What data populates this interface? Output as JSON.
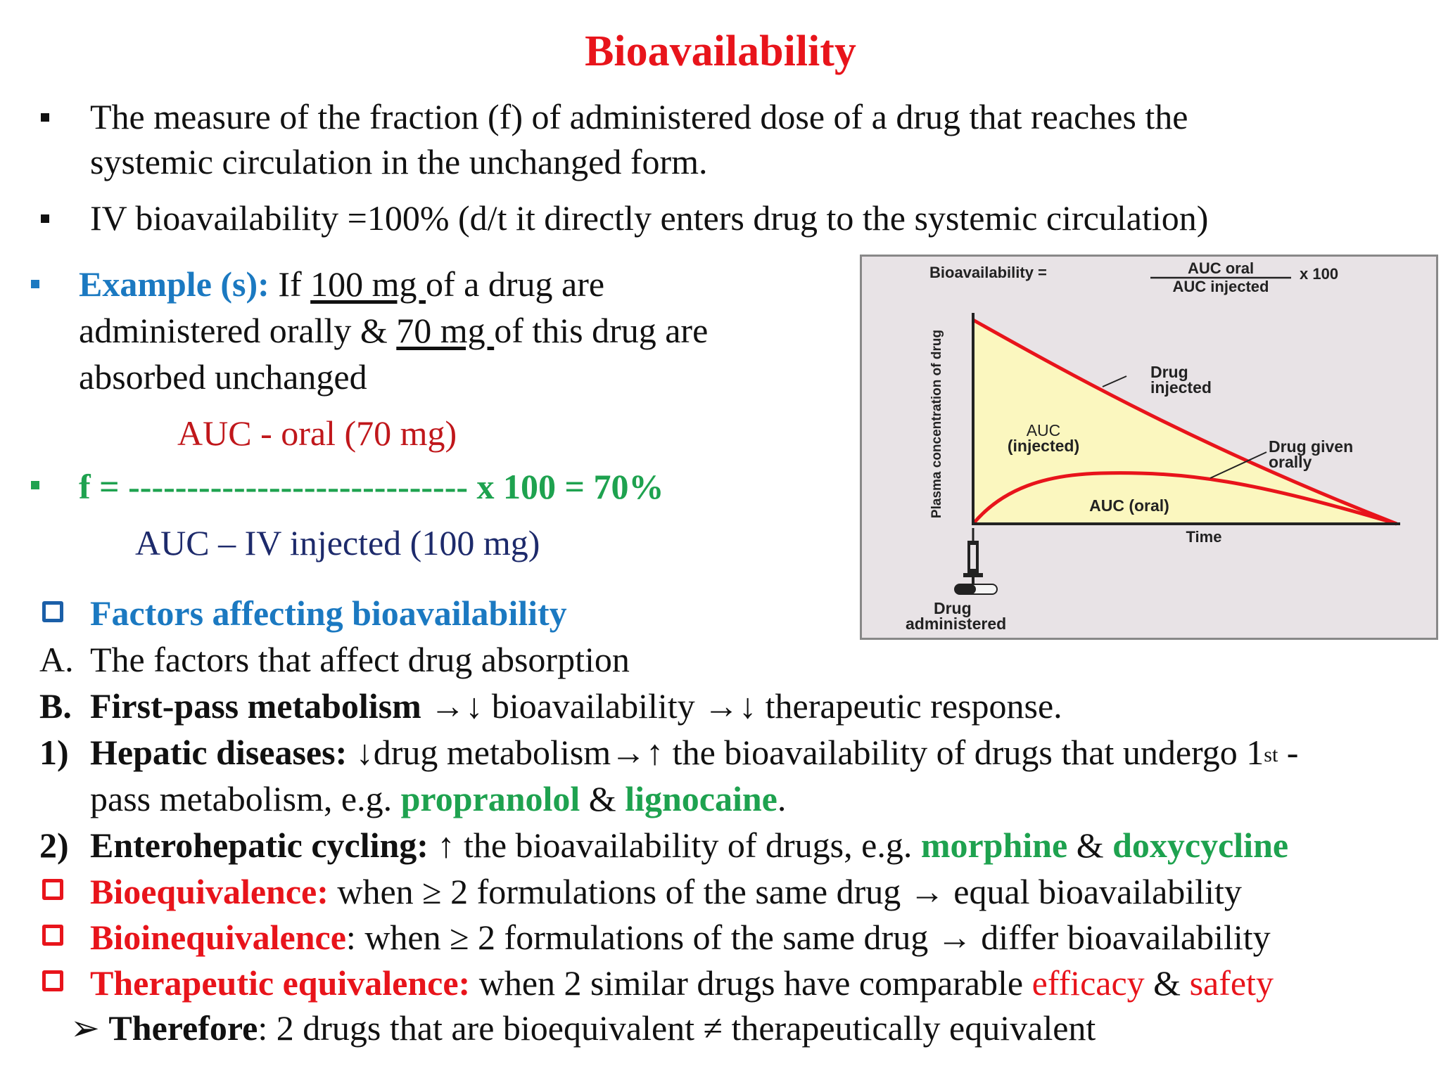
{
  "title": "Bioavailability",
  "bullets": {
    "b1_line1": "The measure of the fraction (f) of administered dose of a drug that reaches the",
    "b1_line2": "systemic circulation in the unchanged form.",
    "b2": "IV bioavailability =100% (d/t it directly enters drug to the systemic circulation)"
  },
  "example": {
    "label": "Example (s):",
    "l1_a": " If ",
    "l1_u": "100 mg ",
    "l1_b": "of a drug are",
    "l2_a": "administered orally & ",
    "l2_u": "70 mg ",
    "l2_b": "of this drug are",
    "l3": "absorbed unchanged",
    "numerator": "AUC - oral  (70 mg)",
    "f_line": "f =  ----------------------------- x 100 = 70%",
    "denominator": "AUC – IV injected (100 mg)"
  },
  "factors": {
    "heading": "Factors affecting bioavailability",
    "a_marker": "A.",
    "a_text": "The factors that affect drug absorption",
    "b_marker": "B.",
    "b_bold": "First-pass metabolism",
    "b_text": " →↓ bioavailability →↓ therapeutic response.",
    "h1_marker": "1)",
    "h1_bold": "Hepatic diseases:",
    "h1_text": " ↓drug metabolism→↑ the bioavailability of drugs that undergo 1",
    "h1_sup": "st",
    "h1_tail": " -",
    "h1_line2_a": "pass metabolism, e.g. ",
    "h1_drug1": "propranolol",
    "h1_amp": " & ",
    "h1_drug2": "lignocaine",
    "h1_end": ".",
    "h2_marker": "2)",
    "h2_bold": "Enterohepatic cycling:",
    "h2_text": " ↑ the bioavailability of drugs, e.g. ",
    "h2_drug1": "morphine",
    "h2_amp": " & ",
    "h2_drug2": "doxycycline"
  },
  "equivalence": {
    "bioeq_bold": "Bioequivalence:",
    "bioeq_text": " when ≥ 2 formulations of the same drug → equal bioavailability",
    "bioineq_bold": "Bioinequivalence",
    "bioineq_text": ": when  ≥  2 formulations of the same drug → differ bioavailability",
    "thera_bold": "Therapeutic equivalence:",
    "thera_text": " when 2 similar drugs have comparable ",
    "efficacy": "efficacy",
    "amp": " & ",
    "safety": "safety",
    "therefore_arrow": "➢",
    "therefore_bold": "Therefore",
    "therefore_text": ": 2 drugs that are bioequivalent ≠ therapeutically equivalent"
  },
  "figure": {
    "formula_left": "Bioavailability =",
    "formula_num": "AUC oral",
    "formula_den": "AUC injected",
    "formula_right": "x 100",
    "ylabel": "Plasma concentration of drug",
    "xlabel": "Time",
    "label_injected_1": "Drug",
    "label_injected_2": "injected",
    "label_oral_1": "Drug given",
    "label_oral_2": "orally",
    "auc_inj_1": "AUC",
    "auc_inj_2": "(injected)",
    "auc_oral": "AUC (oral)",
    "admin_1": "Drug",
    "admin_2": "administered",
    "colors": {
      "fill": "#fbf7bf",
      "curve": "#e8141b",
      "frame": "#e8e3e6"
    }
  },
  "chart_data": {
    "type": "line",
    "xlabel": "Time",
    "ylabel": "Plasma concentration of drug",
    "series": [
      {
        "name": "Drug injected",
        "x": [
          0,
          0.25,
          0.5,
          0.75,
          1.0
        ],
        "values": [
          1.0,
          0.72,
          0.47,
          0.22,
          0.0
        ]
      },
      {
        "name": "Drug given orally",
        "x": [
          0,
          0.1,
          0.25,
          0.5,
          0.75,
          1.0
        ],
        "values": [
          0.0,
          0.14,
          0.2,
          0.19,
          0.12,
          0.0
        ]
      }
    ],
    "annotations": [
      "AUC (injected)",
      "AUC (oral)"
    ]
  }
}
